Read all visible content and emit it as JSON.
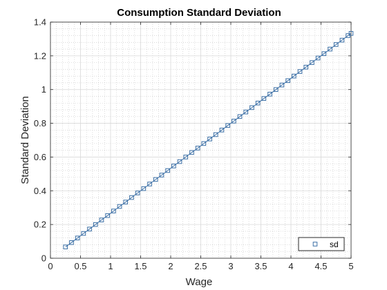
{
  "chart_data": {
    "type": "line",
    "title": "Consumption Standard Deviation",
    "xlabel": "Wage",
    "ylabel": "Standard Deviation",
    "xlim": [
      0,
      5
    ],
    "ylim": [
      0,
      1.4
    ],
    "x_ticks": [
      "0",
      "0.5",
      "1",
      "1.5",
      "2",
      "2.5",
      "3",
      "3.5",
      "4",
      "4.5",
      "5"
    ],
    "y_ticks": [
      "0",
      "0.2",
      "0.4",
      "0.6",
      "0.8",
      "1",
      "1.2",
      "1.4"
    ],
    "grid": true,
    "minor_grid": true,
    "legend_position": "bottom-right",
    "series": [
      {
        "name": "sd",
        "color": "#3a6ea5",
        "marker": "square",
        "x": [
          0.25,
          0.35,
          0.45,
          0.55,
          0.65,
          0.75,
          0.85,
          0.95,
          1.05,
          1.15,
          1.25,
          1.35,
          1.45,
          1.55,
          1.65,
          1.75,
          1.85,
          1.95,
          2.05,
          2.15,
          2.25,
          2.35,
          2.45,
          2.55,
          2.65,
          2.75,
          2.85,
          2.95,
          3.05,
          3.15,
          3.25,
          3.35,
          3.45,
          3.55,
          3.65,
          3.75,
          3.85,
          3.95,
          4.05,
          4.15,
          4.25,
          4.35,
          4.45,
          4.55,
          4.65,
          4.75,
          4.85,
          4.95,
          5.0
        ],
        "y": [
          0.067,
          0.093,
          0.12,
          0.147,
          0.173,
          0.2,
          0.227,
          0.253,
          0.28,
          0.307,
          0.333,
          0.36,
          0.387,
          0.413,
          0.44,
          0.467,
          0.493,
          0.52,
          0.547,
          0.573,
          0.6,
          0.627,
          0.653,
          0.68,
          0.707,
          0.733,
          0.76,
          0.787,
          0.813,
          0.84,
          0.867,
          0.893,
          0.92,
          0.947,
          0.973,
          1.0,
          1.027,
          1.053,
          1.08,
          1.107,
          1.133,
          1.16,
          1.187,
          1.213,
          1.24,
          1.267,
          1.293,
          1.32,
          1.333
        ]
      }
    ]
  }
}
